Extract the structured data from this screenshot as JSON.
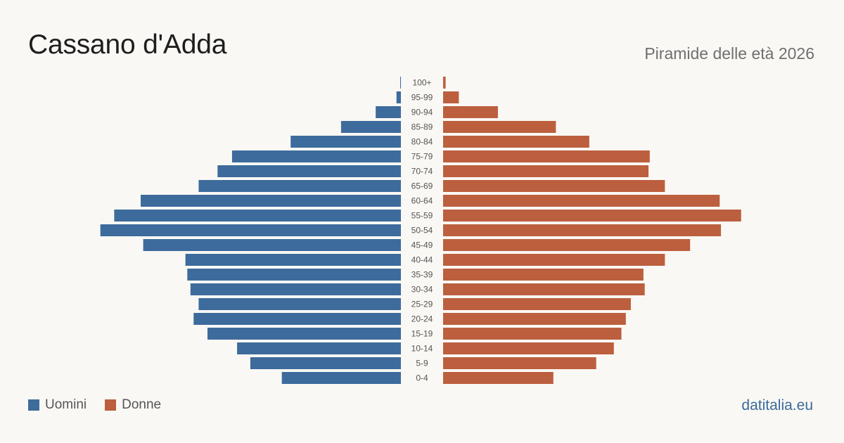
{
  "header": {
    "title": "Cassano d'Adda",
    "subtitle": "Piramide delle età 2026"
  },
  "legend": {
    "men_label": "Uomini",
    "women_label": "Donne"
  },
  "footer": {
    "site": "datitalia.eu"
  },
  "colors": {
    "men": "#3d6b9c",
    "women": "#bc5f3e",
    "background": "#faf8f4"
  },
  "chart_data": {
    "type": "bar",
    "orientation": "horizontal-pyramid",
    "categories": [
      "100+",
      "95-99",
      "90-94",
      "85-89",
      "80-84",
      "75-79",
      "70-74",
      "65-69",
      "60-64",
      "55-59",
      "50-54",
      "45-49",
      "40-44",
      "35-39",
      "30-34",
      "25-29",
      "20-24",
      "15-19",
      "10-14",
      "5-9",
      "0-4"
    ],
    "series": [
      {
        "name": "Uomini",
        "values": [
          1,
          7,
          40,
          95,
          175,
          268,
          291,
          321,
          413,
          455,
          477,
          409,
          342,
          339,
          334,
          321,
          329,
          307,
          260,
          239,
          189
        ]
      },
      {
        "name": "Donne",
        "values": [
          4,
          25,
          87,
          179,
          232,
          328,
          326,
          352,
          439,
          473,
          441,
          392,
          352,
          318,
          320,
          298,
          290,
          283,
          271,
          243,
          175
        ]
      }
    ],
    "xlabel": "",
    "ylabel": "",
    "xlim": [
      0,
      480
    ],
    "grid": false,
    "legend_position": "bottom-left"
  }
}
